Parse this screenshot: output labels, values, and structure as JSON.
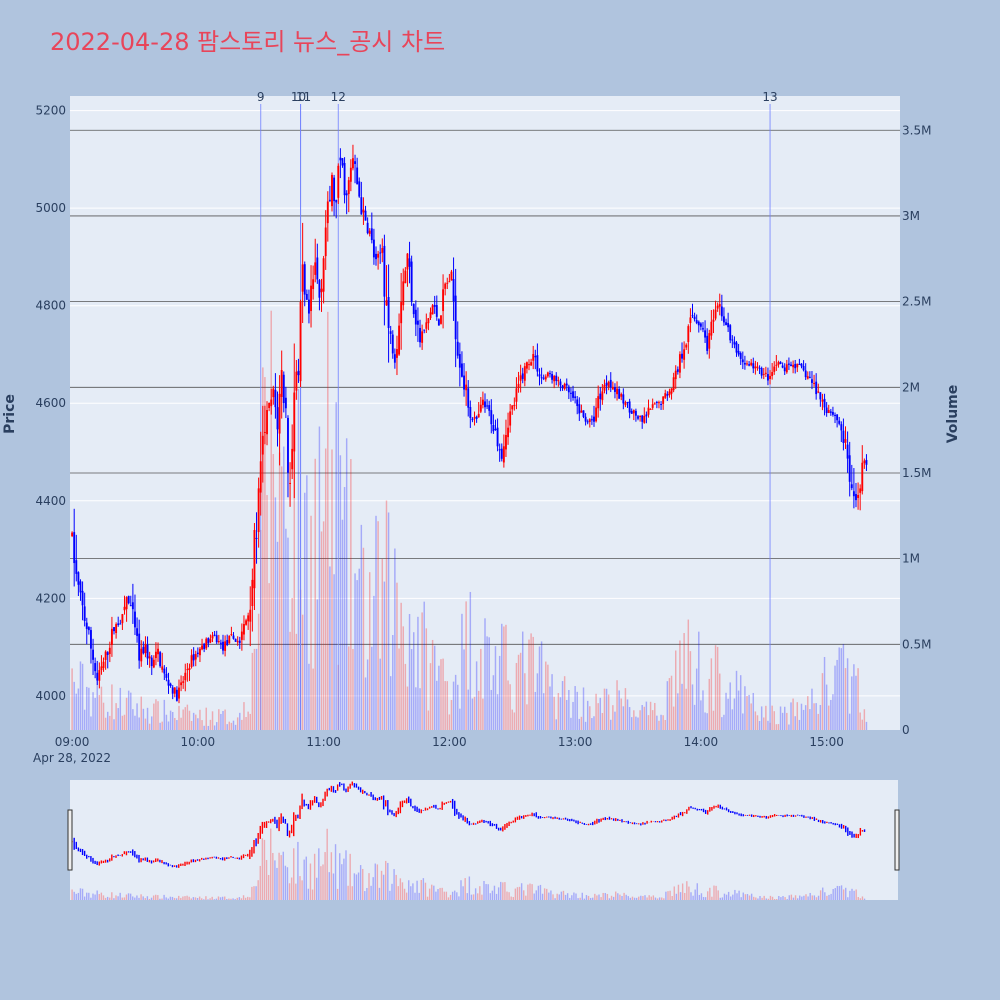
{
  "title": "2022-04-28 팜스토리 뉴스_공시 차트",
  "colors": {
    "background": "#b0c4de",
    "plot_bg": "#e5ecf6",
    "up": "#ff0000",
    "down": "#0000ff",
    "title": "#e8455a",
    "hline": "#555555"
  },
  "chart_data": {
    "type": "candlestick",
    "x_ticks": [
      "09:00",
      "10:00",
      "11:00",
      "12:00",
      "13:00",
      "14:00",
      "15:00"
    ],
    "x_sublabel": "Apr 28, 2022",
    "y_label": "Price",
    "y2_label": "Volume",
    "ylim": [
      3930,
      5230
    ],
    "y_ticks": [
      4000,
      4200,
      4400,
      4600,
      4800,
      5000,
      5200
    ],
    "y2lim": [
      0,
      3700000
    ],
    "y2_ticks": [
      {
        "v": 0,
        "label": "0"
      },
      {
        "v": 500000,
        "label": "0.5M"
      },
      {
        "v": 1000000,
        "label": "1M"
      },
      {
        "v": 1500000,
        "label": "1.5M"
      },
      {
        "v": 2000000,
        "label": "2M"
      },
      {
        "v": 2500000,
        "label": "2.5M"
      },
      {
        "v": 3000000,
        "label": "3M"
      },
      {
        "v": 3500000,
        "label": "3.5M"
      }
    ],
    "x_range_min": [
      -1,
      395
    ],
    "news_markers": [
      {
        "label": "9",
        "minute": 90
      },
      {
        "label": "10",
        "minute": 109
      },
      {
        "label": "11",
        "minute": 109
      },
      {
        "label": "12",
        "minute": 127
      },
      {
        "label": "13",
        "minute": 333
      }
    ],
    "price_anchors": [
      [
        0,
        4330
      ],
      [
        2,
        4240
      ],
      [
        5,
        4180
      ],
      [
        8,
        4120
      ],
      [
        10,
        4080
      ],
      [
        12,
        4030
      ],
      [
        16,
        4080
      ],
      [
        20,
        4140
      ],
      [
        24,
        4160
      ],
      [
        26,
        4200
      ],
      [
        28,
        4180
      ],
      [
        32,
        4080
      ],
      [
        35,
        4100
      ],
      [
        38,
        4060
      ],
      [
        41,
        4090
      ],
      [
        44,
        4040
      ],
      [
        47,
        4020
      ],
      [
        50,
        4000
      ],
      [
        53,
        4030
      ],
      [
        56,
        4070
      ],
      [
        60,
        4090
      ],
      [
        64,
        4110
      ],
      [
        68,
        4120
      ],
      [
        72,
        4100
      ],
      [
        76,
        4120
      ],
      [
        80,
        4110
      ],
      [
        84,
        4170
      ],
      [
        86,
        4250
      ],
      [
        88,
        4350
      ],
      [
        90,
        4450
      ],
      [
        92,
        4560
      ],
      [
        94,
        4590
      ],
      [
        96,
        4620
      ],
      [
        98,
        4560
      ],
      [
        100,
        4660
      ],
      [
        102,
        4580
      ],
      [
        104,
        4420
      ],
      [
        106,
        4680
      ],
      [
        108,
        4650
      ],
      [
        110,
        4830
      ],
      [
        113,
        4780
      ],
      [
        116,
        4880
      ],
      [
        118,
        4820
      ],
      [
        121,
        4960
      ],
      [
        124,
        5050
      ],
      [
        126,
        5000
      ],
      [
        128,
        5100
      ],
      [
        131,
        5020
      ],
      [
        134,
        5100
      ],
      [
        136,
        5050
      ],
      [
        139,
        4980
      ],
      [
        142,
        4950
      ],
      [
        145,
        4880
      ],
      [
        148,
        4920
      ],
      [
        151,
        4750
      ],
      [
        154,
        4700
      ],
      [
        157,
        4830
      ],
      [
        160,
        4900
      ],
      [
        163,
        4800
      ],
      [
        166,
        4730
      ],
      [
        169,
        4760
      ],
      [
        172,
        4800
      ],
      [
        175,
        4770
      ],
      [
        178,
        4840
      ],
      [
        181,
        4860
      ],
      [
        184,
        4720
      ],
      [
        187,
        4640
      ],
      [
        190,
        4580
      ],
      [
        193,
        4560
      ],
      [
        196,
        4600
      ],
      [
        199,
        4580
      ],
      [
        202,
        4540
      ],
      [
        205,
        4500
      ],
      [
        208,
        4570
      ],
      [
        211,
        4600
      ],
      [
        214,
        4650
      ],
      [
        217,
        4680
      ],
      [
        220,
        4700
      ],
      [
        224,
        4650
      ],
      [
        228,
        4660
      ],
      [
        232,
        4640
      ],
      [
        236,
        4630
      ],
      [
        240,
        4600
      ],
      [
        244,
        4570
      ],
      [
        248,
        4560
      ],
      [
        252,
        4620
      ],
      [
        256,
        4650
      ],
      [
        260,
        4620
      ],
      [
        264,
        4600
      ],
      [
        268,
        4580
      ],
      [
        272,
        4560
      ],
      [
        276,
        4590
      ],
      [
        280,
        4600
      ],
      [
        284,
        4620
      ],
      [
        288,
        4660
      ],
      [
        292,
        4720
      ],
      [
        296,
        4780
      ],
      [
        300,
        4760
      ],
      [
        303,
        4720
      ],
      [
        306,
        4770
      ],
      [
        309,
        4800
      ],
      [
        312,
        4760
      ],
      [
        315,
        4720
      ],
      [
        318,
        4700
      ],
      [
        321,
        4680
      ],
      [
        324,
        4680
      ],
      [
        327,
        4670
      ],
      [
        330,
        4660
      ],
      [
        333,
        4650
      ],
      [
        336,
        4680
      ],
      [
        340,
        4670
      ],
      [
        344,
        4680
      ],
      [
        348,
        4670
      ],
      [
        352,
        4650
      ],
      [
        356,
        4620
      ],
      [
        360,
        4590
      ],
      [
        363,
        4580
      ],
      [
        366,
        4560
      ],
      [
        369,
        4510
      ],
      [
        371,
        4450
      ],
      [
        373,
        4380
      ],
      [
        375,
        4420
      ],
      [
        377,
        4470
      ],
      [
        379,
        4480
      ]
    ],
    "volume_anchors": [
      [
        0,
        300000
      ],
      [
        20,
        180000
      ],
      [
        40,
        120000
      ],
      [
        60,
        90000
      ],
      [
        80,
        80000
      ],
      [
        86,
        350000
      ],
      [
        90,
        1300000
      ],
      [
        96,
        1900000
      ],
      [
        100,
        1550000
      ],
      [
        105,
        1500000
      ],
      [
        110,
        1200000
      ],
      [
        116,
        1300000
      ],
      [
        122,
        1600000
      ],
      [
        128,
        1200000
      ],
      [
        134,
        1000000
      ],
      [
        140,
        750000
      ],
      [
        150,
        900000
      ],
      [
        160,
        700000
      ],
      [
        170,
        450000
      ],
      [
        180,
        300000
      ],
      [
        190,
        600000
      ],
      [
        200,
        450000
      ],
      [
        210,
        380000
      ],
      [
        220,
        400000
      ],
      [
        230,
        250000
      ],
      [
        240,
        200000
      ],
      [
        250,
        150000
      ],
      [
        260,
        200000
      ],
      [
        270,
        120000
      ],
      [
        280,
        100000
      ],
      [
        290,
        450000
      ],
      [
        300,
        400000
      ],
      [
        310,
        300000
      ],
      [
        320,
        200000
      ],
      [
        330,
        100000
      ],
      [
        340,
        100000
      ],
      [
        350,
        150000
      ],
      [
        360,
        300000
      ],
      [
        370,
        350000
      ],
      [
        380,
        150000
      ]
    ]
  }
}
